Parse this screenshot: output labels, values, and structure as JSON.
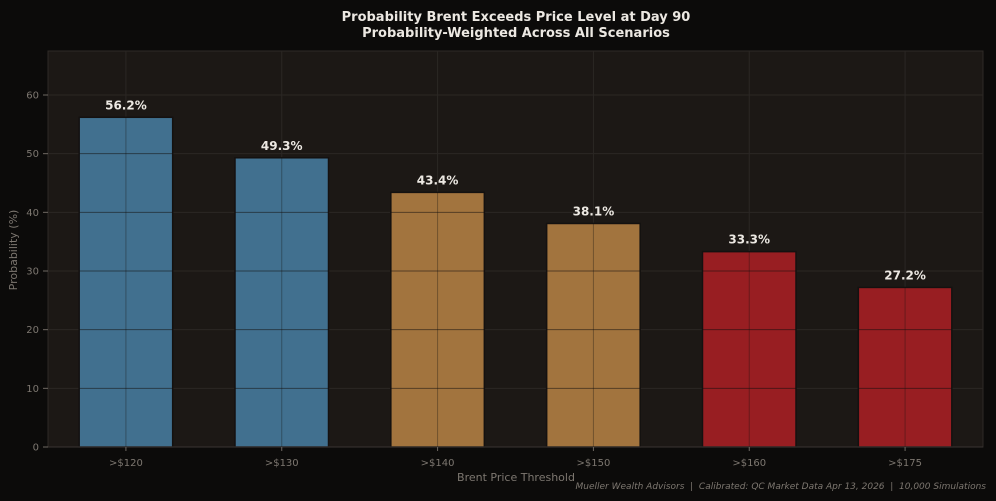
{
  "chart_data": {
    "type": "bar",
    "title": "Probability Brent Exceeds Price Level at Day 90",
    "subtitle": "Probability-Weighted Across All Scenarios",
    "xlabel": "Brent Price Threshold",
    "ylabel": "Probability (%)",
    "categories": [
      ">$120",
      ">$130",
      ">$140",
      ">$150",
      ">$160",
      ">$175"
    ],
    "values": [
      56.2,
      49.3,
      43.4,
      38.1,
      33.3,
      27.2
    ],
    "data_labels": [
      "56.2%",
      "49.3%",
      "43.4%",
      "38.1%",
      "33.3%",
      "27.2%"
    ],
    "bar_colors": [
      "#41708f",
      "#41708f",
      "#a2743e",
      "#a2743e",
      "#981e22",
      "#981e22"
    ],
    "ylim": [
      0,
      67.5
    ],
    "yticks": [
      0,
      10,
      20,
      30,
      40,
      50,
      60
    ],
    "grid": true,
    "legend": "none",
    "footer": "Mueller Wealth Advisors  |  Calibrated: QC Market Data Apr 13, 2026  |  10,000 Simulations"
  },
  "theme": {
    "background": "#0c0b0a",
    "plot_background": "#1c1815",
    "grid_color": "#2b2724",
    "text_color": "#ece8e2",
    "muted_text": "#7d7770"
  }
}
